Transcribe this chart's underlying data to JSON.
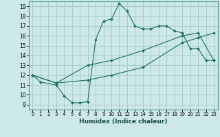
{
  "title": "",
  "xlabel": "Humidex (Indice chaleur)",
  "bg_color": "#cce8e8",
  "grid_color": "#aacccc",
  "line_color": "#1a6e60",
  "xlim": [
    -0.5,
    23.5
  ],
  "ylim": [
    8.5,
    19.5
  ],
  "xticks": [
    0,
    1,
    2,
    3,
    4,
    5,
    6,
    7,
    8,
    9,
    10,
    11,
    12,
    13,
    14,
    15,
    16,
    17,
    18,
    19,
    20,
    21,
    22,
    23
  ],
  "yticks": [
    9,
    10,
    11,
    12,
    13,
    14,
    15,
    16,
    17,
    18,
    19
  ],
  "curve1_x": [
    0,
    1,
    3,
    4,
    5,
    6,
    7,
    8,
    9,
    10,
    11,
    12,
    13,
    14,
    15,
    16,
    17,
    18,
    19,
    20,
    21,
    22,
    23
  ],
  "curve1_y": [
    12,
    11.3,
    11.0,
    9.9,
    9.2,
    9.2,
    9.3,
    15.6,
    17.5,
    17.7,
    19.3,
    18.5,
    17.0,
    16.7,
    16.7,
    17.0,
    17.0,
    16.5,
    16.3,
    14.7,
    14.7,
    13.5,
    13.5
  ],
  "curve2_x": [
    0,
    3,
    7,
    10,
    14,
    19,
    21,
    23
  ],
  "curve2_y": [
    12,
    11.2,
    13.0,
    13.5,
    14.5,
    16.0,
    16.3,
    13.5
  ],
  "curve3_x": [
    0,
    3,
    7,
    10,
    14,
    19,
    21,
    23
  ],
  "curve3_y": [
    12,
    11.2,
    11.5,
    12.0,
    12.8,
    15.3,
    15.8,
    16.3
  ]
}
